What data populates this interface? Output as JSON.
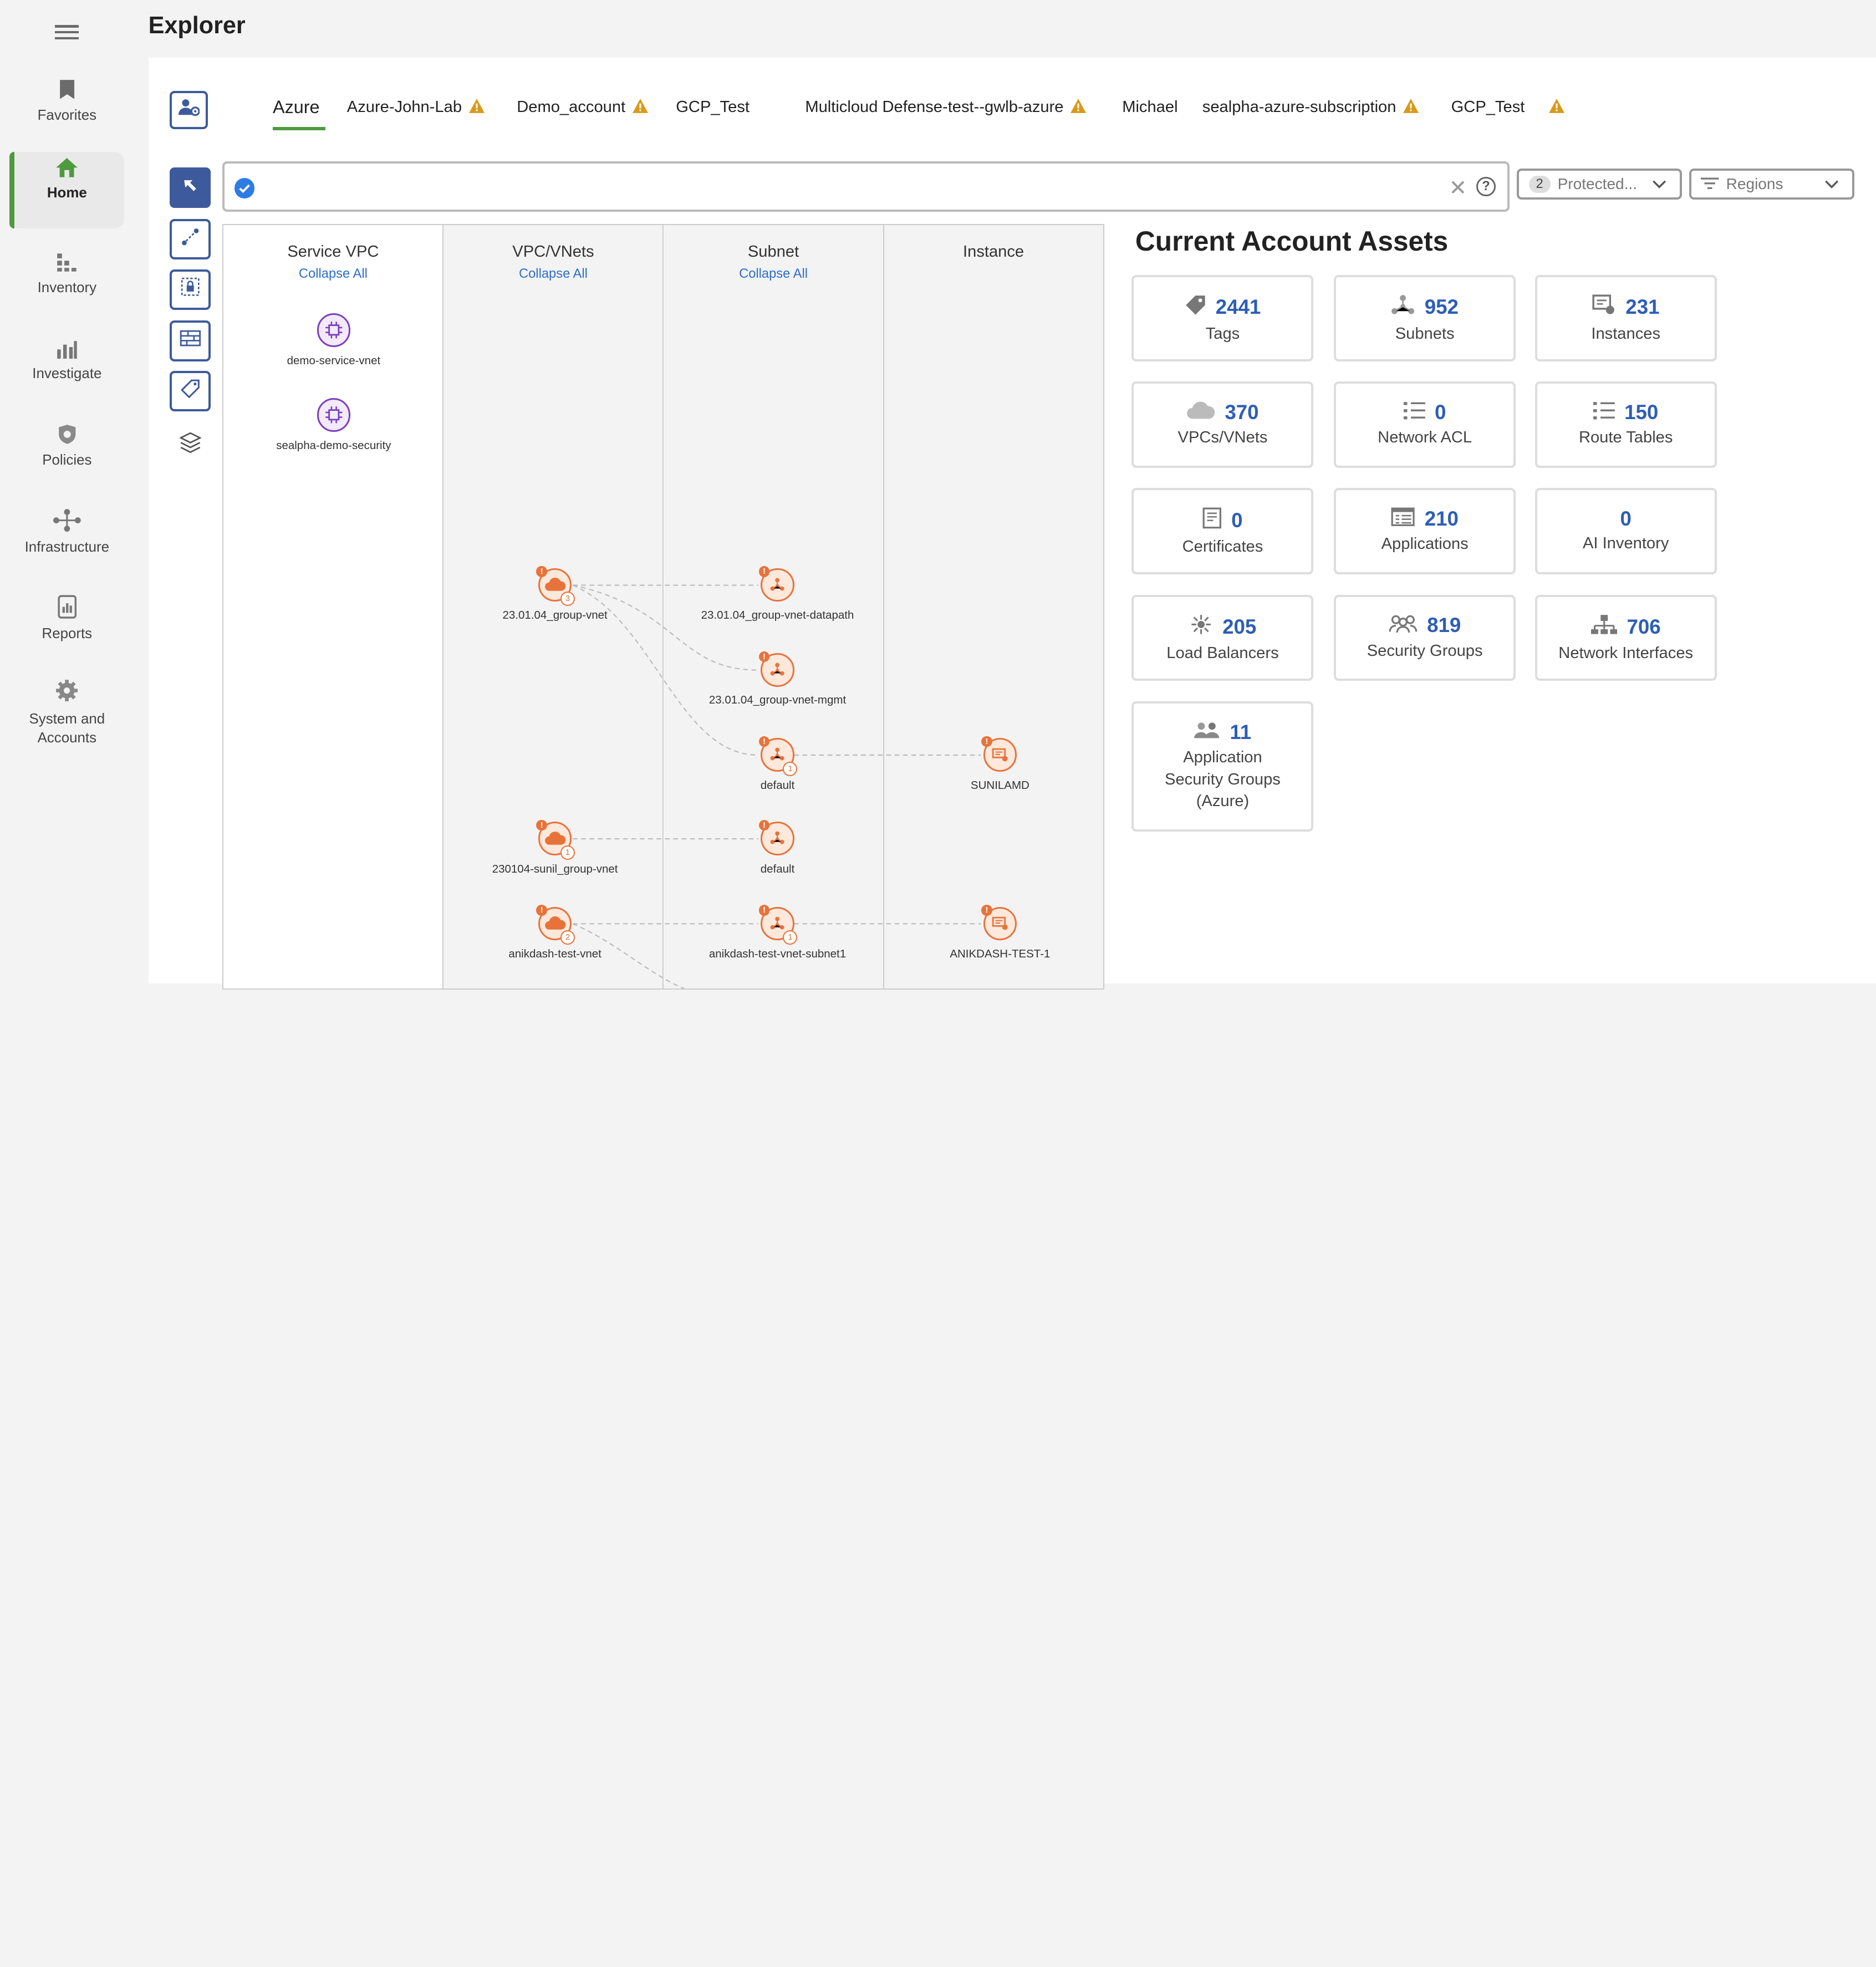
{
  "sidebar": {
    "items": [
      {
        "label": "Favorites"
      },
      {
        "label": "Home"
      },
      {
        "label": "Inventory"
      },
      {
        "label": "Investigate"
      },
      {
        "label": "Policies"
      },
      {
        "label": "Infrastructure"
      },
      {
        "label": "Reports"
      },
      {
        "label": "System and Accounts"
      }
    ],
    "active": "Home",
    "accent": "#4e9a3f"
  },
  "page": {
    "title": "Explorer"
  },
  "tabs": [
    {
      "label": "Azure",
      "active": true,
      "warning": false
    },
    {
      "label": "Azure-John-Lab",
      "warning": true
    },
    {
      "label": "Demo_account",
      "warning": true
    },
    {
      "label": "GCP_Test",
      "warning": false
    },
    {
      "label": "Multicloud Defense-test--gwlb-azure",
      "warning": true
    },
    {
      "label": "Michael",
      "warning": false
    },
    {
      "label": "sealpha-azure-subscription",
      "warning": true
    },
    {
      "label": "GCP_Test",
      "warning": true
    }
  ],
  "search": {
    "value": "",
    "placeholder": ""
  },
  "filters": {
    "protected": {
      "count": "2",
      "label": "Protected..."
    },
    "regions": {
      "label": "Regions"
    }
  },
  "topology": {
    "columns": [
      {
        "title": "Service VPC",
        "collapse": "Collapse All"
      },
      {
        "title": "VPC/VNets",
        "collapse": "Collapse All"
      },
      {
        "title": "Subnet",
        "collapse": "Collapse All"
      },
      {
        "title": "Instance",
        "collapse": ""
      }
    ],
    "service_vpcs": [
      "demo-service-vnet",
      "sealpha-demo-security"
    ],
    "vnets": [
      {
        "name": "23.01.04_group-vnet",
        "count": "3"
      },
      {
        "name": "230104-sunil_group-vnet",
        "count": "1"
      },
      {
        "name": "anikdash-test-vnet",
        "count": "2"
      }
    ],
    "subnets": [
      {
        "name": "23.01.04_group-vnet-datapath"
      },
      {
        "name": "23.01.04_group-vnet-mgmt"
      },
      {
        "name": "default",
        "count": "1"
      },
      {
        "name": "default"
      },
      {
        "name": "anikdash-test-vnet-subnet1",
        "count": "1"
      }
    ],
    "instances": [
      "SUNILAMD",
      "ANIKDASH-TEST-1"
    ],
    "colors": {
      "service": "#7b3fbf",
      "resource": "#e8733a"
    }
  },
  "assets": {
    "title": "Current Account Assets",
    "cards": [
      {
        "value": "2441",
        "label": "Tags",
        "icon": "tag-icon"
      },
      {
        "value": "952",
        "label": "Subnets",
        "icon": "subnet-icon"
      },
      {
        "value": "231",
        "label": "Instances",
        "icon": "instance-icon"
      },
      {
        "value": "370",
        "label": "VPCs/VNets",
        "icon": "cloud-icon"
      },
      {
        "value": "0",
        "label": "Network ACL",
        "icon": "list-icon"
      },
      {
        "value": "150",
        "label": "Route Tables",
        "icon": "list-icon"
      },
      {
        "value": "0",
        "label": "Certificates",
        "icon": "certificate-icon"
      },
      {
        "value": "210",
        "label": "Applications",
        "icon": "application-icon"
      },
      {
        "value": "0",
        "label": "AI Inventory",
        "icon": ""
      },
      {
        "value": "205",
        "label": "Load Balancers",
        "icon": "load-balancer-icon"
      },
      {
        "value": "819",
        "label": "Security Groups",
        "icon": "security-group-icon"
      },
      {
        "value": "706",
        "label": "Network Interfaces",
        "icon": "network-interface-icon"
      },
      {
        "value": "11",
        "label": "Application Security Groups (Azure)",
        "icon": "app-security-group-icon"
      }
    ]
  }
}
